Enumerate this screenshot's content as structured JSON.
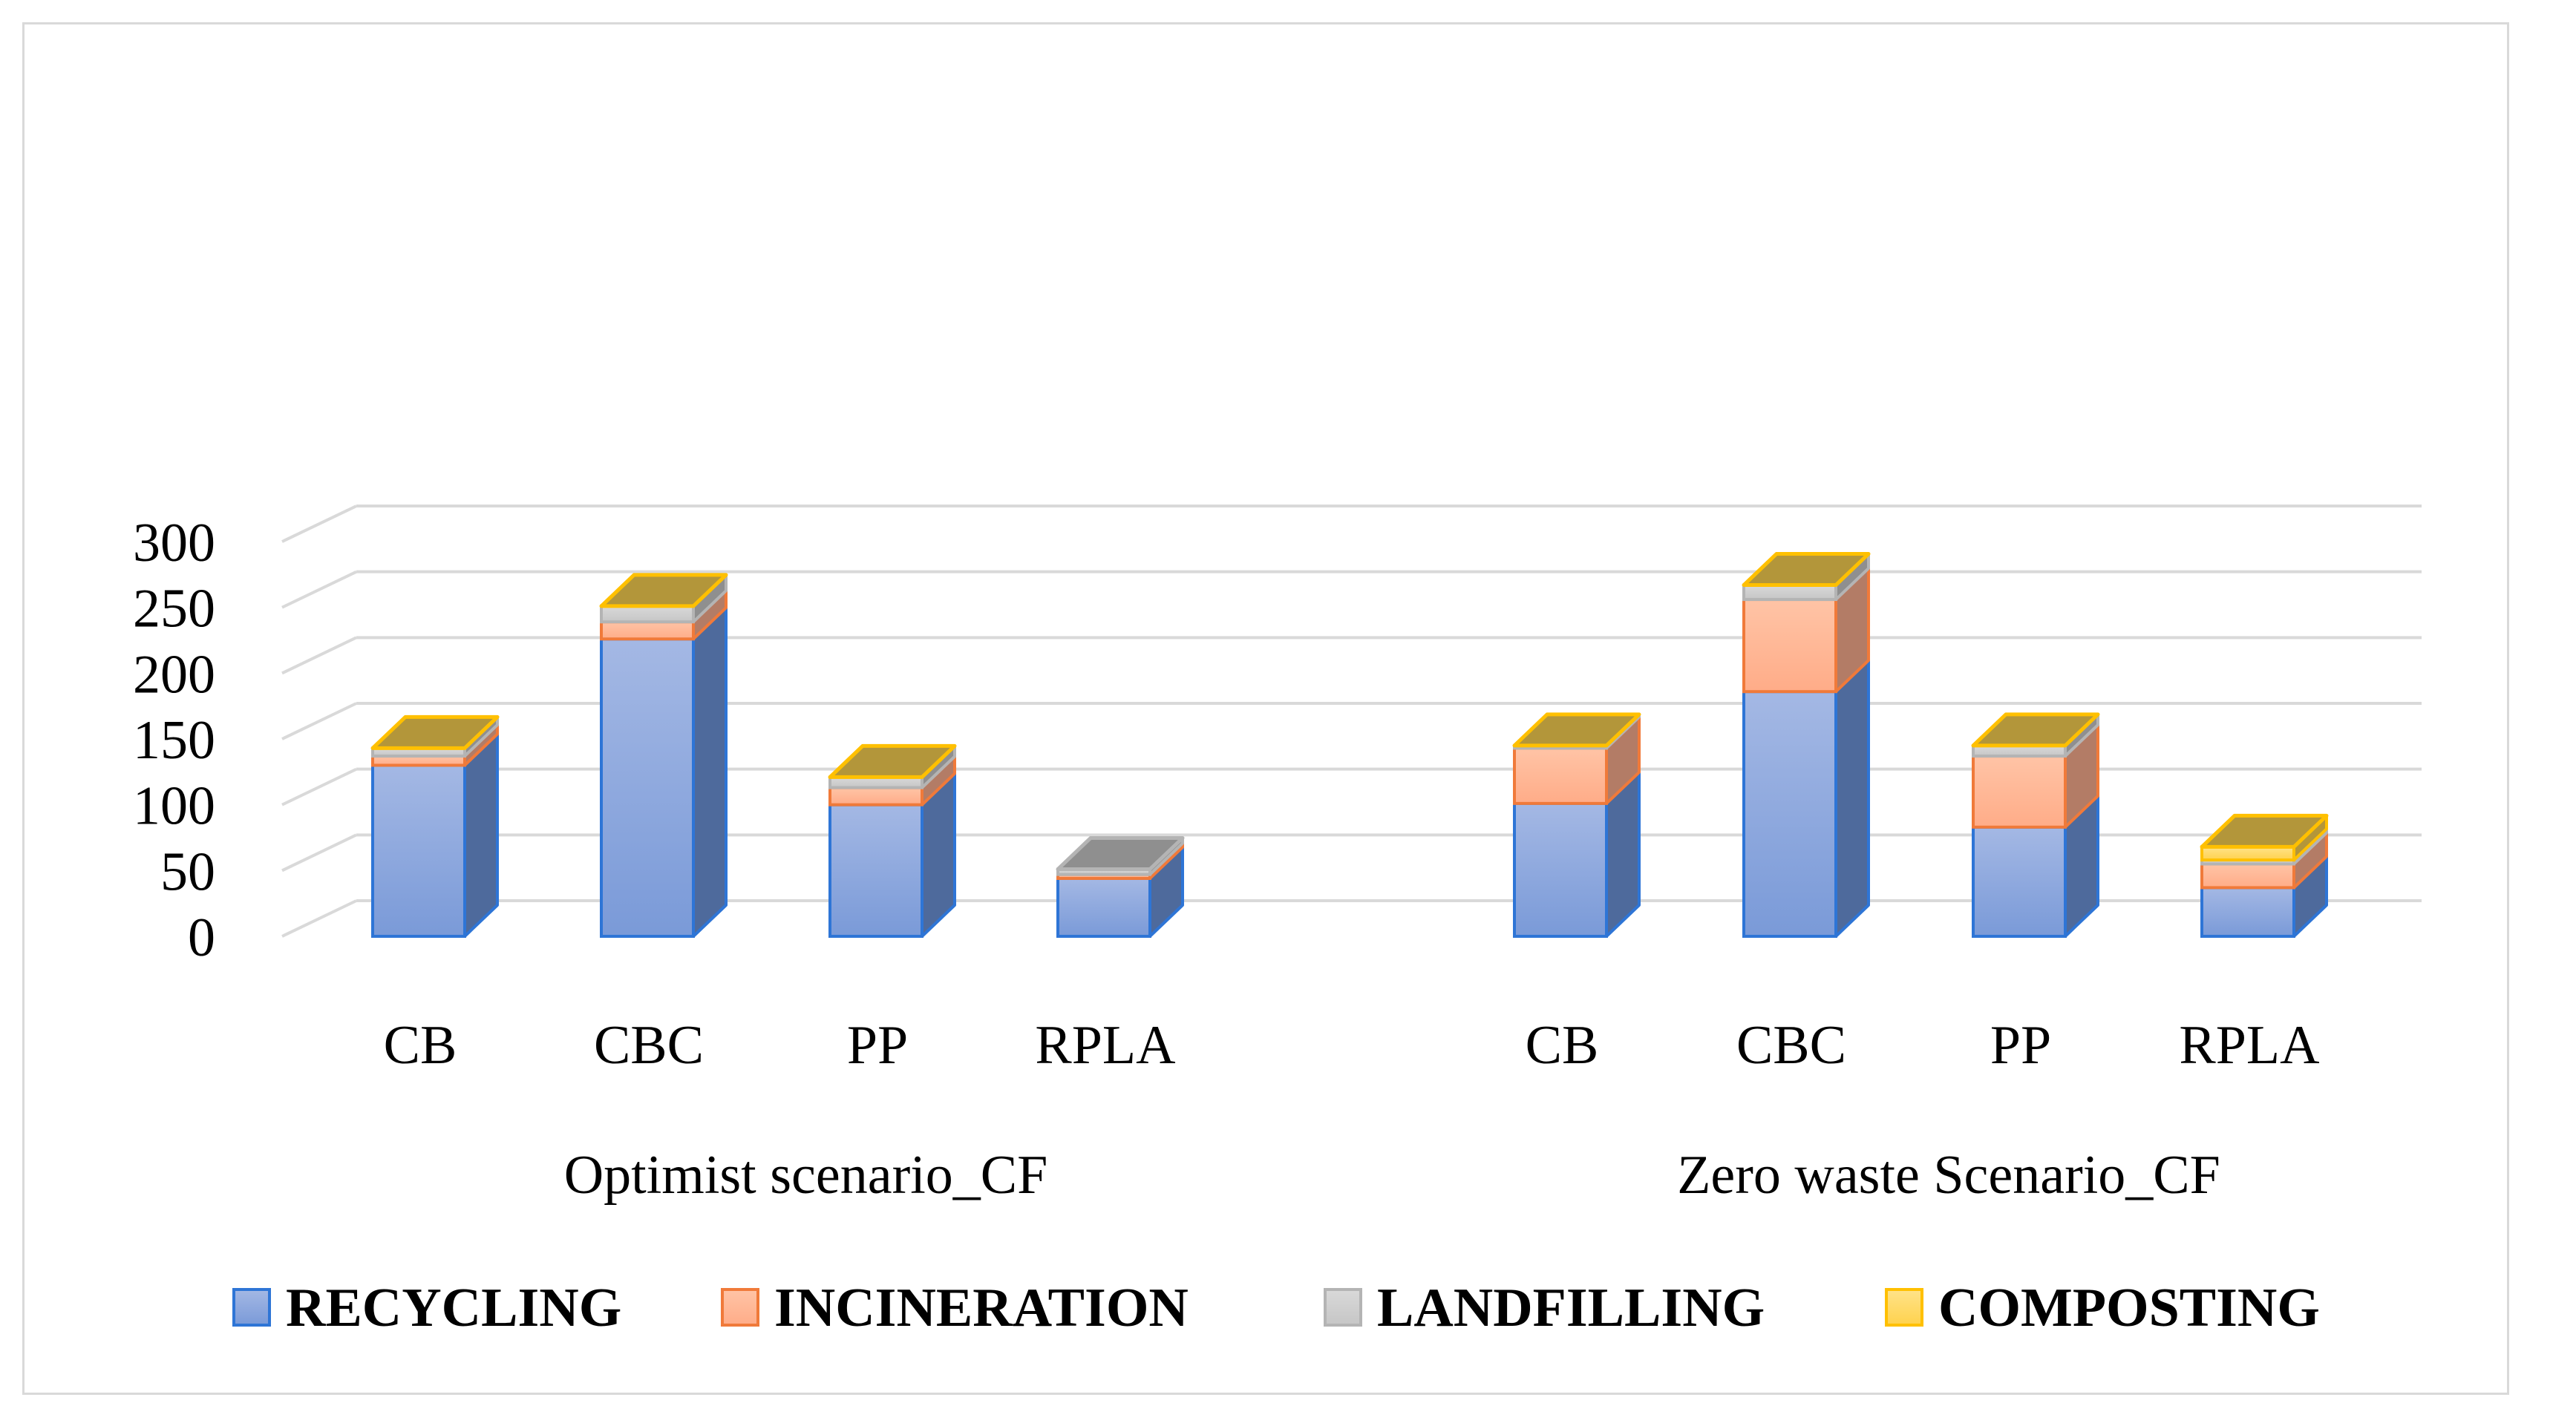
{
  "chart_data": {
    "type": "bar",
    "stacked": true,
    "style": "3d-column",
    "y_ticks": [
      "0",
      "50",
      "100",
      "150",
      "200",
      "250",
      "300"
    ],
    "ylim": [
      0,
      300
    ],
    "grid": true,
    "legend_position": "bottom",
    "groups": [
      {
        "label": "Optimist scenario_CF",
        "categories": [
          "CB",
          "CBC",
          "PP",
          "RPLA"
        ],
        "series": [
          {
            "name": "RECYCLING",
            "values": [
              130,
              226,
              100,
              44
            ]
          },
          {
            "name": "INCINERATION",
            "values": [
              7,
              13,
              13,
              3
            ]
          },
          {
            "name": "LANDFILLING",
            "values": [
              6,
              12,
              8,
              4
            ]
          },
          {
            "name": "COMPOSTING",
            "values": [
              0,
              0,
              0,
              0
            ]
          }
        ]
      },
      {
        "label": "Zero waste Scenario_CF",
        "categories": [
          "CB",
          "CBC",
          "PP",
          "RPLA"
        ],
        "series": [
          {
            "name": "RECYCLING",
            "values": [
              101,
              186,
              83,
              37
            ]
          },
          {
            "name": "INCINERATION",
            "values": [
              42,
              70,
              54,
              18
            ]
          },
          {
            "name": "LANDFILLING",
            "values": [
              2,
              11,
              8,
              3
            ]
          },
          {
            "name": "COMPOSTING",
            "values": [
              0,
              0,
              0,
              10
            ]
          }
        ]
      }
    ],
    "colors": {
      "RECYCLING": {
        "top": "#a4b8e4",
        "bottom": "#7a9ad8",
        "side": "#4e6a9c",
        "stroke": "#2e75d6"
      },
      "INCINERATION": {
        "top": "#ffc4a6",
        "bottom": "#ffac88",
        "side": "#b37c66",
        "stroke": "#f07a3a"
      },
      "LANDFILLING": {
        "top": "#d9d9d9",
        "bottom": "#c6c6c6",
        "side": "#8f8f8f",
        "stroke": "#b4b4b4"
      },
      "COMPOSTING": {
        "top": "#ffe38a",
        "bottom": "#ffd24d",
        "side": "#b3963a",
        "stroke": "#ffc000"
      }
    }
  }
}
